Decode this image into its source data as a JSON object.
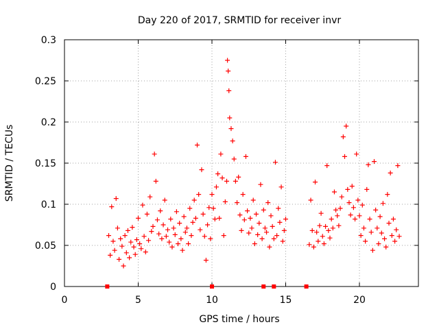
{
  "chart_data": {
    "type": "scatter",
    "title": "Day 220 of 2017, SRMTID for receiver invr",
    "xlabel": "GPS time / hours",
    "ylabel": "SRMTID / TECUs",
    "xlim": [
      0,
      24
    ],
    "ylim": [
      0,
      0.3
    ],
    "x_ticks": [
      0,
      5,
      10,
      15,
      20
    ],
    "y_ticks": [
      0,
      0.05,
      0.1,
      0.15,
      0.2,
      0.25,
      0.3
    ],
    "x_tick_labels": [
      "0",
      "5",
      "10",
      "15",
      "20"
    ],
    "y_tick_labels": [
      "0",
      "0.05",
      "0.1",
      "0.15",
      "0.2",
      "0.25",
      "0.3"
    ],
    "grid": true,
    "marker": "plus",
    "series_color": "#ff0000",
    "gap_markers_x": [
      2.9,
      10.0,
      13.5,
      14.2,
      16.4
    ],
    "series": [
      {
        "name": "SRMTID",
        "x": [
          3.0,
          3.1,
          3.2,
          3.3,
          3.4,
          3.5,
          3.6,
          3.7,
          3.8,
          3.9,
          4.0,
          4.1,
          4.2,
          4.3,
          4.4,
          4.5,
          4.6,
          4.7,
          4.8,
          4.9,
          5.0,
          5.1,
          5.2,
          5.3,
          5.4,
          5.5,
          5.6,
          5.7,
          5.8,
          5.9,
          6.0,
          6.1,
          6.2,
          6.3,
          6.4,
          6.5,
          6.6,
          6.7,
          6.8,
          6.9,
          7.0,
          7.1,
          7.2,
          7.3,
          7.4,
          7.5,
          7.6,
          7.7,
          7.8,
          7.9,
          8.0,
          8.1,
          8.2,
          8.3,
          8.4,
          8.5,
          8.6,
          8.7,
          8.8,
          8.9,
          9.0,
          9.1,
          9.2,
          9.3,
          9.4,
          9.5,
          9.6,
          9.7,
          9.8,
          9.9,
          10.0,
          10.1,
          10.2,
          10.3,
          10.4,
          10.5,
          10.6,
          10.7,
          10.8,
          10.9,
          11.0,
          11.05,
          11.1,
          11.15,
          11.2,
          11.3,
          11.4,
          11.5,
          11.6,
          11.7,
          11.8,
          11.9,
          12.0,
          12.1,
          12.2,
          12.3,
          12.4,
          12.5,
          12.6,
          12.7,
          12.8,
          12.9,
          13.0,
          13.1,
          13.2,
          13.3,
          13.4,
          13.5,
          13.6,
          13.7,
          13.8,
          13.9,
          14.0,
          14.1,
          14.2,
          14.3,
          14.4,
          14.5,
          14.6,
          14.7,
          14.8,
          14.9,
          15.0,
          16.6,
          16.7,
          16.8,
          16.9,
          17.0,
          17.1,
          17.2,
          17.3,
          17.4,
          17.5,
          17.6,
          17.7,
          17.8,
          17.9,
          18.0,
          18.1,
          18.2,
          18.3,
          18.4,
          18.5,
          18.6,
          18.7,
          18.8,
          18.9,
          19.0,
          19.1,
          19.2,
          19.3,
          19.4,
          19.5,
          19.6,
          19.7,
          19.8,
          19.9,
          20.0,
          20.1,
          20.2,
          20.3,
          20.4,
          20.5,
          20.6,
          20.7,
          20.8,
          20.9,
          21.0,
          21.1,
          21.2,
          21.3,
          21.4,
          21.5,
          21.6,
          21.7,
          21.8,
          21.9,
          22.0,
          22.1,
          22.2,
          22.3,
          22.4,
          22.5,
          22.6,
          22.7
        ],
        "y": [
          0.062,
          0.038,
          0.097,
          0.055,
          0.044,
          0.107,
          0.071,
          0.033,
          0.058,
          0.049,
          0.025,
          0.062,
          0.041,
          0.068,
          0.035,
          0.054,
          0.072,
          0.048,
          0.039,
          0.057,
          0.083,
          0.052,
          0.046,
          0.099,
          0.061,
          0.042,
          0.088,
          0.056,
          0.109,
          0.067,
          0.073,
          0.161,
          0.128,
          0.081,
          0.064,
          0.092,
          0.058,
          0.075,
          0.105,
          0.061,
          0.069,
          0.054,
          0.082,
          0.048,
          0.071,
          0.063,
          0.091,
          0.052,
          0.077,
          0.058,
          0.044,
          0.085,
          0.066,
          0.071,
          0.052,
          0.095,
          0.062,
          0.078,
          0.105,
          0.083,
          0.172,
          0.112,
          0.069,
          0.142,
          0.088,
          0.061,
          0.032,
          0.075,
          0.096,
          0.058,
          0.112,
          0.095,
          0.082,
          0.121,
          0.137,
          0.083,
          0.161,
          0.132,
          0.062,
          0.103,
          0.128,
          0.275,
          0.262,
          0.238,
          0.205,
          0.192,
          0.177,
          0.155,
          0.128,
          0.102,
          0.133,
          0.087,
          0.068,
          0.112,
          0.081,
          0.158,
          0.092,
          0.065,
          0.083,
          0.071,
          0.105,
          0.052,
          0.088,
          0.063,
          0.077,
          0.124,
          0.058,
          0.093,
          0.071,
          0.066,
          0.102,
          0.048,
          0.086,
          0.073,
          0.058,
          0.151,
          0.062,
          0.095,
          0.078,
          0.121,
          0.055,
          0.068,
          0.082,
          0.051,
          0.105,
          0.068,
          0.048,
          0.127,
          0.066,
          0.055,
          0.074,
          0.089,
          0.061,
          0.052,
          0.073,
          0.147,
          0.068,
          0.059,
          0.082,
          0.071,
          0.115,
          0.093,
          0.086,
          0.074,
          0.095,
          0.109,
          0.182,
          0.158,
          0.195,
          0.118,
          0.102,
          0.087,
          0.122,
          0.096,
          0.082,
          0.161,
          0.105,
          0.086,
          0.062,
          0.099,
          0.071,
          0.055,
          0.118,
          0.148,
          0.082,
          0.066,
          0.044,
          0.152,
          0.093,
          0.071,
          0.052,
          0.085,
          0.065,
          0.101,
          0.058,
          0.048,
          0.112,
          0.077,
          0.138,
          0.062,
          0.082,
          0.055,
          0.069,
          0.147,
          0.061
        ]
      }
    ]
  }
}
